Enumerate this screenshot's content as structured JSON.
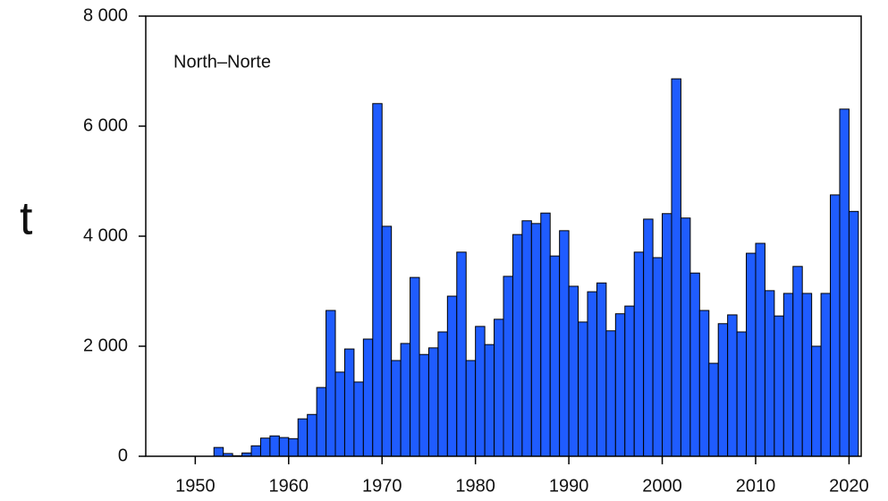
{
  "chart_data": {
    "type": "bar",
    "annotation": "North–Norte",
    "ylabel": "t",
    "color": "#1f5cff",
    "x": [
      1952,
      1953,
      1954,
      1955,
      1956,
      1957,
      1958,
      1959,
      1960,
      1961,
      1962,
      1963,
      1964,
      1965,
      1966,
      1967,
      1968,
      1969,
      1970,
      1971,
      1972,
      1973,
      1974,
      1975,
      1976,
      1977,
      1978,
      1979,
      1980,
      1981,
      1982,
      1983,
      1984,
      1985,
      1986,
      1987,
      1988,
      1989,
      1990,
      1991,
      1992,
      1993,
      1994,
      1995,
      1996,
      1997,
      1998,
      1999,
      2000,
      2001,
      2002,
      2003,
      2004,
      2005,
      2006,
      2007,
      2008,
      2009,
      2010,
      2011,
      2012,
      2013,
      2014,
      2015,
      2016,
      2017,
      2018,
      2019,
      2020
    ],
    "values": [
      160,
      50,
      10,
      60,
      190,
      330,
      370,
      340,
      320,
      680,
      760,
      1250,
      2650,
      1530,
      1950,
      1350,
      2130,
      6410,
      4180,
      1740,
      2050,
      3250,
      1850,
      1970,
      2260,
      2910,
      3710,
      1740,
      2360,
      2030,
      2490,
      3270,
      4030,
      4280,
      4230,
      4420,
      3640,
      4100,
      3090,
      2440,
      2990,
      3150,
      2280,
      2590,
      2730,
      3710,
      4310,
      3610,
      4410,
      6860,
      4330,
      3330,
      2650,
      1690,
      2410,
      2570,
      2260,
      3690,
      3870,
      3010,
      2550,
      2960,
      3450,
      2960,
      2000,
      2960,
      4750,
      6310,
      4450
    ],
    "xlim": [
      1944.7,
      2021.3
    ],
    "xticks": [
      1950,
      1960,
      1970,
      1980,
      1990,
      2000,
      2010,
      2020
    ],
    "ylim": [
      0,
      8000
    ],
    "yticks": [
      0,
      {
        "value": 2000,
        "label": "2 000"
      },
      {
        "value": 4000,
        "label": "4 000"
      },
      {
        "value": 6000,
        "label": "6 000"
      },
      {
        "value": 8000,
        "label": "8 000"
      }
    ]
  }
}
